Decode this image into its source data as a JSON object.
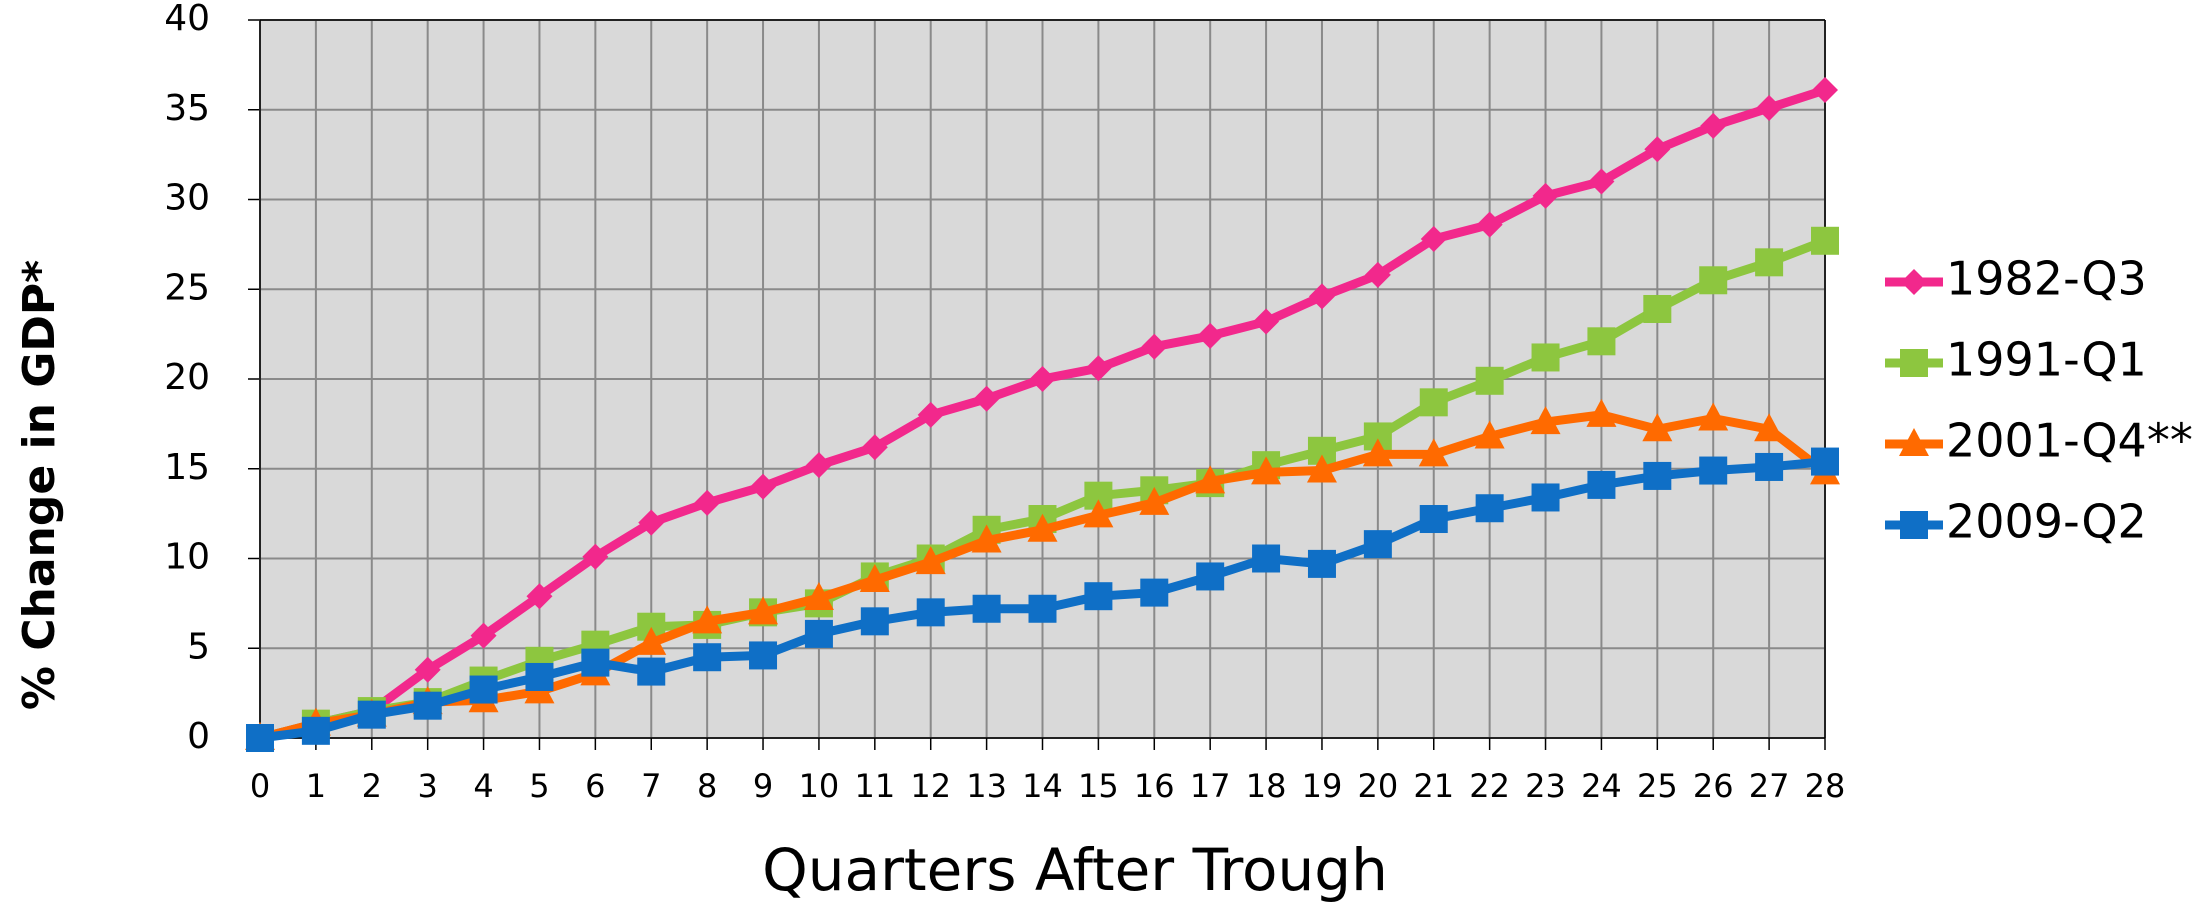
{
  "chart_data": {
    "type": "line",
    "x_label": "Quarters After Trough",
    "y_label": "% Change in GDP*",
    "x": [
      0,
      1,
      2,
      3,
      4,
      5,
      6,
      7,
      8,
      9,
      10,
      11,
      12,
      13,
      14,
      15,
      16,
      17,
      18,
      19,
      20,
      21,
      22,
      23,
      24,
      25,
      26,
      27,
      28
    ],
    "xlim": [
      0,
      28
    ],
    "xticks": [
      0,
      1,
      2,
      3,
      4,
      5,
      6,
      7,
      8,
      9,
      10,
      11,
      12,
      13,
      14,
      15,
      16,
      17,
      18,
      19,
      20,
      21,
      22,
      23,
      24,
      25,
      26,
      27,
      28
    ],
    "ylim": [
      0,
      40
    ],
    "yticks": [
      0,
      5,
      10,
      15,
      20,
      25,
      30,
      35,
      40
    ],
    "grid": true,
    "legend": "right",
    "series": [
      {
        "name": "1982-Q3",
        "color": "#f2288c",
        "marker": "diamond",
        "values": [
          0,
          0.8,
          1.5,
          3.8,
          5.7,
          7.9,
          10.1,
          12.0,
          13.1,
          14.0,
          15.2,
          16.2,
          18.0,
          18.9,
          20.0,
          20.6,
          21.8,
          22.4,
          23.2,
          24.6,
          25.8,
          27.8,
          28.6,
          30.2,
          31.0,
          32.8,
          34.1,
          35.1,
          36.1
        ]
      },
      {
        "name": "1991-Q1",
        "color": "#8dc63f",
        "marker": "square",
        "values": [
          0,
          0.8,
          1.5,
          2.0,
          3.2,
          4.3,
          5.2,
          6.2,
          6.3,
          7.0,
          7.5,
          9.0,
          10.0,
          11.6,
          12.2,
          13.5,
          13.8,
          14.2,
          15.2,
          16.0,
          16.8,
          18.7,
          19.9,
          21.2,
          22.1,
          23.9,
          25.5,
          26.5,
          27.7
        ]
      },
      {
        "name": "2001-Q4**",
        "color": "#ff6a00",
        "marker": "triangle",
        "values": [
          0,
          0.8,
          1.3,
          2.0,
          2.1,
          2.6,
          3.6,
          5.3,
          6.5,
          7.0,
          7.8,
          8.8,
          9.8,
          11.0,
          11.6,
          12.4,
          13.1,
          14.3,
          14.8,
          14.9,
          15.8,
          15.8,
          16.8,
          17.6,
          18.0,
          17.2,
          17.8,
          17.2,
          14.8
        ]
      },
      {
        "name": "2009-Q2",
        "color": "#0f6fc6",
        "marker": "square",
        "values": [
          0,
          0.4,
          1.3,
          1.8,
          2.7,
          3.4,
          4.2,
          3.7,
          4.5,
          4.6,
          5.8,
          6.5,
          7.0,
          7.2,
          7.2,
          7.9,
          8.1,
          9.0,
          10.0,
          9.7,
          10.8,
          12.2,
          12.8,
          13.4,
          14.1,
          14.6,
          14.9,
          15.1,
          15.4
        ]
      }
    ]
  }
}
